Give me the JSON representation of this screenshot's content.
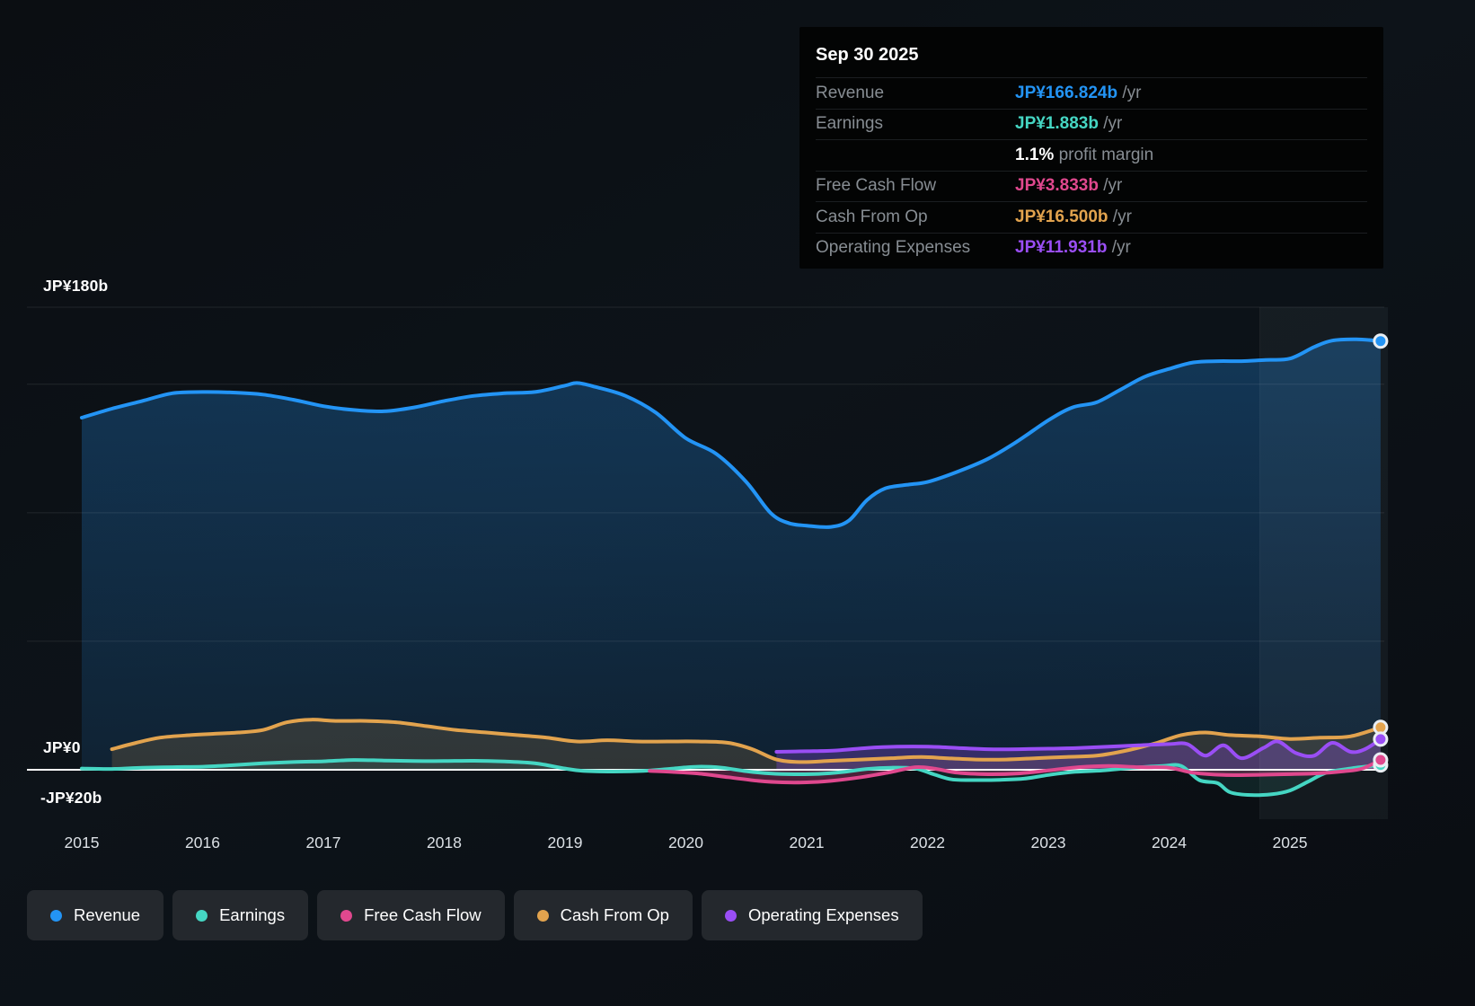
{
  "colors": {
    "revenue": "#2394f5",
    "earnings": "#45d6c3",
    "free_cash_flow": "#e0488e",
    "cash_from_op": "#e2a34e",
    "operating_expenses": "#9a4ef5",
    "white": "#ffffff",
    "background": "#0d1116",
    "grid": "rgba(255,255,255,0.09)",
    "zero_line": "#ffffff"
  },
  "tooltip": {
    "date": "Sep 30 2025",
    "rows": [
      {
        "label": "Revenue",
        "value": "JP¥166.824b",
        "suffix": " /yr",
        "color": "revenue"
      },
      {
        "label": "Earnings",
        "value": "JP¥1.883b",
        "suffix": " /yr",
        "color": "earnings"
      },
      {
        "label": "",
        "value": "1.1%",
        "suffix": " profit margin",
        "color": "white"
      },
      {
        "label": "Free Cash Flow",
        "value": "JP¥3.833b",
        "suffix": " /yr",
        "color": "free_cash_flow"
      },
      {
        "label": "Cash From Op",
        "value": "JP¥16.500b",
        "suffix": " /yr",
        "color": "cash_from_op"
      },
      {
        "label": "Operating Expenses",
        "value": "JP¥11.931b",
        "suffix": " /yr",
        "color": "operating_expenses"
      }
    ]
  },
  "legend": [
    {
      "label": "Revenue",
      "color": "revenue"
    },
    {
      "label": "Earnings",
      "color": "earnings"
    },
    {
      "label": "Free Cash Flow",
      "color": "free_cash_flow"
    },
    {
      "label": "Cash From Op",
      "color": "cash_from_op"
    },
    {
      "label": "Operating Expenses",
      "color": "operating_expenses"
    }
  ],
  "chart_data": {
    "type": "area",
    "x_unit": "year",
    "y_unit": "JP¥ billions",
    "title": "",
    "y_axis_labels": [
      {
        "text": "JP¥180b",
        "value": 180
      },
      {
        "text": "JP¥0",
        "value": 0
      },
      {
        "text": "-JP¥20b",
        "value": -20
      }
    ],
    "gridline_values": [
      180,
      150,
      100,
      50
    ],
    "x_ticks": [
      2015,
      2016,
      2017,
      2018,
      2019,
      2020,
      2021,
      2022,
      2023,
      2024,
      2025
    ],
    "x_range": [
      2015.0,
      2025.75
    ],
    "y_range": [
      -20,
      180
    ],
    "highlight_from_year": 2024.75,
    "series": [
      {
        "name": "Revenue",
        "key": "revenue",
        "points": [
          [
            2015.0,
            137
          ],
          [
            2015.25,
            140.5
          ],
          [
            2015.5,
            143.5
          ],
          [
            2015.75,
            146.5
          ],
          [
            2016.0,
            147
          ],
          [
            2016.25,
            146.8
          ],
          [
            2016.5,
            146
          ],
          [
            2016.75,
            144
          ],
          [
            2017.0,
            141.5
          ],
          [
            2017.25,
            140
          ],
          [
            2017.5,
            139.5
          ],
          [
            2017.75,
            141
          ],
          [
            2018.0,
            143.5
          ],
          [
            2018.25,
            145.5
          ],
          [
            2018.5,
            146.5
          ],
          [
            2018.75,
            147
          ],
          [
            2019.0,
            149.5
          ],
          [
            2019.1,
            150.5
          ],
          [
            2019.25,
            149
          ],
          [
            2019.5,
            145.5
          ],
          [
            2019.75,
            139
          ],
          [
            2020.0,
            129
          ],
          [
            2020.25,
            123
          ],
          [
            2020.5,
            112
          ],
          [
            2020.7,
            100
          ],
          [
            2020.85,
            96
          ],
          [
            2021.0,
            95
          ],
          [
            2021.2,
            94.5
          ],
          [
            2021.35,
            97
          ],
          [
            2021.5,
            105
          ],
          [
            2021.65,
            109.5
          ],
          [
            2021.85,
            111
          ],
          [
            2022.0,
            112
          ],
          [
            2022.25,
            116
          ],
          [
            2022.5,
            121
          ],
          [
            2022.75,
            128
          ],
          [
            2023.0,
            136
          ],
          [
            2023.2,
            141
          ],
          [
            2023.4,
            143
          ],
          [
            2023.6,
            148
          ],
          [
            2023.8,
            153
          ],
          [
            2024.0,
            156
          ],
          [
            2024.2,
            158.5
          ],
          [
            2024.4,
            159
          ],
          [
            2024.6,
            159
          ],
          [
            2024.8,
            159.5
          ],
          [
            2025.0,
            160
          ],
          [
            2025.2,
            164.5
          ],
          [
            2025.35,
            167
          ],
          [
            2025.55,
            167.5
          ],
          [
            2025.75,
            166.824
          ]
        ]
      },
      {
        "name": "Earnings",
        "key": "earnings",
        "points": [
          [
            2015.0,
            0.5
          ],
          [
            2015.25,
            0.3
          ],
          [
            2015.5,
            0.8
          ],
          [
            2015.75,
            1
          ],
          [
            2016.0,
            1.2
          ],
          [
            2016.25,
            1.8
          ],
          [
            2016.5,
            2.5
          ],
          [
            2016.75,
            3
          ],
          [
            2017.0,
            3.3
          ],
          [
            2017.25,
            3.8
          ],
          [
            2017.5,
            3.6
          ],
          [
            2017.75,
            3.4
          ],
          [
            2018.0,
            3.4
          ],
          [
            2018.25,
            3.5
          ],
          [
            2018.5,
            3.2
          ],
          [
            2018.75,
            2.5
          ],
          [
            2019.0,
            0.5
          ],
          [
            2019.15,
            -0.8
          ],
          [
            2019.4,
            -1.2
          ],
          [
            2019.65,
            -0.8
          ],
          [
            2019.9,
            0.5
          ],
          [
            2020.1,
            1.2
          ],
          [
            2020.3,
            0.8
          ],
          [
            2020.5,
            -1
          ],
          [
            2020.7,
            -2.5
          ],
          [
            2020.9,
            -3
          ],
          [
            2021.1,
            -2.8
          ],
          [
            2021.3,
            -1.5
          ],
          [
            2021.5,
            0.3
          ],
          [
            2021.7,
            0.8
          ],
          [
            2021.9,
            0.5
          ],
          [
            2022.05,
            -3
          ],
          [
            2022.2,
            -6.5
          ],
          [
            2022.4,
            -7
          ],
          [
            2022.6,
            -6.8
          ],
          [
            2022.8,
            -6
          ],
          [
            2023.0,
            -3.5
          ],
          [
            2023.2,
            -1.5
          ],
          [
            2023.45,
            -0.5
          ],
          [
            2023.7,
            0.8
          ],
          [
            2023.95,
            1.5
          ],
          [
            2024.1,
            1.5
          ],
          [
            2024.25,
            -7
          ],
          [
            2024.4,
            -9
          ],
          [
            2024.5,
            -15
          ],
          [
            2024.65,
            -17
          ],
          [
            2024.85,
            -16.5
          ],
          [
            2025.0,
            -14
          ],
          [
            2025.15,
            -8
          ],
          [
            2025.3,
            -2
          ],
          [
            2025.5,
            0.5
          ],
          [
            2025.75,
            1.883
          ]
        ]
      },
      {
        "name": "Free Cash Flow",
        "key": "free_cash_flow",
        "points": [
          [
            2019.7,
            -0.8
          ],
          [
            2019.9,
            -1.5
          ],
          [
            2020.1,
            -2.5
          ],
          [
            2020.35,
            -5
          ],
          [
            2020.6,
            -7.5
          ],
          [
            2020.8,
            -8.5
          ],
          [
            2021.0,
            -8.5
          ],
          [
            2021.2,
            -7.5
          ],
          [
            2021.45,
            -5
          ],
          [
            2021.7,
            -1.5
          ],
          [
            2021.9,
            1
          ],
          [
            2022.05,
            0.5
          ],
          [
            2022.25,
            -2
          ],
          [
            2022.5,
            -3
          ],
          [
            2022.75,
            -2.5
          ],
          [
            2023.0,
            -0.5
          ],
          [
            2023.25,
            1
          ],
          [
            2023.5,
            1.5
          ],
          [
            2023.75,
            1
          ],
          [
            2024.0,
            0.8
          ],
          [
            2024.2,
            -2
          ],
          [
            2024.45,
            -3.5
          ],
          [
            2024.7,
            -3.5
          ],
          [
            2024.95,
            -3
          ],
          [
            2025.2,
            -2.5
          ],
          [
            2025.45,
            -1
          ],
          [
            2025.6,
            0.5
          ],
          [
            2025.75,
            3.833
          ]
        ]
      },
      {
        "name": "Cash From Op",
        "key": "cash_from_op",
        "points": [
          [
            2015.25,
            8
          ],
          [
            2015.45,
            10.5
          ],
          [
            2015.65,
            12.5
          ],
          [
            2015.9,
            13.5
          ],
          [
            2016.1,
            14
          ],
          [
            2016.3,
            14.5
          ],
          [
            2016.5,
            15.5
          ],
          [
            2016.7,
            18.5
          ],
          [
            2016.9,
            19.5
          ],
          [
            2017.1,
            19
          ],
          [
            2017.35,
            19
          ],
          [
            2017.6,
            18.5
          ],
          [
            2017.85,
            17
          ],
          [
            2018.1,
            15.5
          ],
          [
            2018.35,
            14.5
          ],
          [
            2018.6,
            13.5
          ],
          [
            2018.85,
            12.5
          ],
          [
            2019.1,
            11
          ],
          [
            2019.35,
            11.5
          ],
          [
            2019.6,
            11
          ],
          [
            2019.85,
            11
          ],
          [
            2020.1,
            11
          ],
          [
            2020.35,
            10.5
          ],
          [
            2020.55,
            8
          ],
          [
            2020.75,
            4
          ],
          [
            2020.95,
            3
          ],
          [
            2021.2,
            3.5
          ],
          [
            2021.45,
            4
          ],
          [
            2021.7,
            4.5
          ],
          [
            2021.95,
            5
          ],
          [
            2022.15,
            4.5
          ],
          [
            2022.4,
            4
          ],
          [
            2022.65,
            4
          ],
          [
            2022.9,
            4.5
          ],
          [
            2023.15,
            5
          ],
          [
            2023.4,
            5.5
          ],
          [
            2023.65,
            7.5
          ],
          [
            2023.9,
            10.5
          ],
          [
            2024.1,
            13.5
          ],
          [
            2024.3,
            14.5
          ],
          [
            2024.5,
            13.5
          ],
          [
            2024.75,
            13
          ],
          [
            2025.0,
            12
          ],
          [
            2025.25,
            12.5
          ],
          [
            2025.5,
            13
          ],
          [
            2025.75,
            16.5
          ]
        ]
      },
      {
        "name": "Operating Expenses",
        "key": "operating_expenses",
        "points": [
          [
            2020.75,
            7
          ],
          [
            2021.0,
            7.2
          ],
          [
            2021.25,
            7.5
          ],
          [
            2021.5,
            8.5
          ],
          [
            2021.75,
            9
          ],
          [
            2022.0,
            9
          ],
          [
            2022.25,
            8.5
          ],
          [
            2022.5,
            8
          ],
          [
            2022.75,
            8
          ],
          [
            2023.0,
            8.2
          ],
          [
            2023.25,
            8.5
          ],
          [
            2023.5,
            9
          ],
          [
            2023.75,
            9.5
          ],
          [
            2024.0,
            10
          ],
          [
            2024.15,
            10
          ],
          [
            2024.3,
            5.5
          ],
          [
            2024.45,
            9.5
          ],
          [
            2024.6,
            4.5
          ],
          [
            2024.78,
            8.5
          ],
          [
            2024.9,
            11
          ],
          [
            2025.05,
            6.5
          ],
          [
            2025.2,
            5.5
          ],
          [
            2025.35,
            10.5
          ],
          [
            2025.5,
            7
          ],
          [
            2025.62,
            8
          ],
          [
            2025.75,
            11.931
          ]
        ]
      }
    ]
  }
}
